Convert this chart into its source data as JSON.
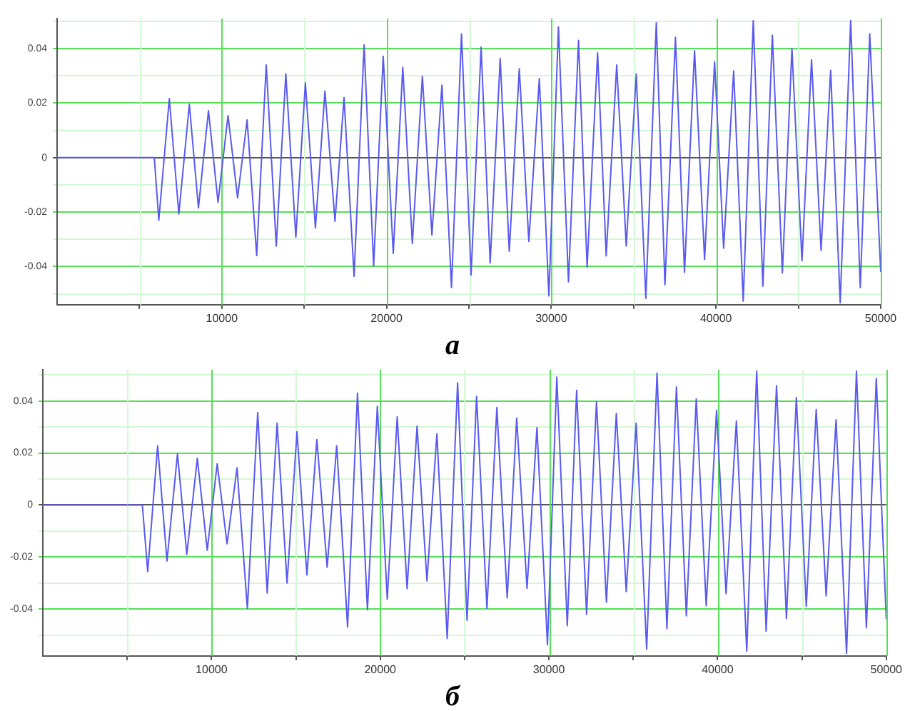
{
  "chart_data": [
    {
      "type": "line",
      "title": "а",
      "color": "#5a5af0",
      "grid": true,
      "xlim": [
        0,
        50000
      ],
      "ylim": [
        -0.054,
        0.051
      ],
      "xticks": [
        {
          "value": 5000,
          "label": null
        },
        10000,
        {
          "value": 15000,
          "label": null
        },
        20000,
        {
          "value": 25000,
          "label": null
        },
        30000,
        {
          "value": 35000,
          "label": null
        },
        40000,
        {
          "value": 45000,
          "label": null
        },
        50000
      ],
      "yticks": [
        {
          "value": -0.05,
          "label": null
        },
        -0.04,
        {
          "value": -0.03,
          "label": null
        },
        -0.02,
        {
          "value": -0.01,
          "label": null
        },
        0,
        {
          "value": 0.01,
          "label": null
        },
        0.02,
        {
          "value": 0.03,
          "label": null
        },
        0.04,
        {
          "value": 0.05,
          "label": null
        }
      ],
      "x": [
        0,
        5900,
        6174,
        6812,
        7391,
        8029,
        8580,
        9189,
        9769,
        10377,
        10957,
        11536,
        12116,
        12696,
        13305,
        13884,
        14493,
        15072,
        15681,
        16261,
        16870,
        17420,
        18029,
        18638,
        19217,
        19797,
        20406,
        20985,
        21565,
        22174,
        22754,
        23362,
        23942,
        24551,
        25131,
        25740,
        26290,
        26899,
        27450,
        28059,
        28638,
        29276,
        29855,
        30435,
        31044,
        31653,
        32175,
        32812,
        33334,
        33972,
        34551,
        35159,
        35740,
        36377,
        36899,
        37538,
        38088,
        38697,
        39306,
        39915,
        40463,
        41072,
        41653,
        42263,
        42845,
        43420,
        44029,
        44610,
        45219,
        45800,
        46377,
        46960,
        47540,
        48175,
        48758,
        49333,
        50000
      ],
      "values": [
        0,
        0,
        -0.023,
        0.0216,
        -0.0207,
        0.0195,
        -0.0185,
        0.0172,
        -0.0164,
        0.0154,
        -0.0148,
        0.0138,
        -0.036,
        0.034,
        -0.0325,
        0.0307,
        -0.0292,
        0.0274,
        -0.0259,
        0.0244,
        -0.0234,
        0.022,
        -0.0436,
        0.0413,
        -0.0398,
        0.0372,
        -0.0352,
        0.0331,
        -0.0316,
        0.0298,
        -0.0284,
        0.0266,
        -0.0477,
        0.0454,
        -0.0431,
        0.0405,
        -0.0387,
        0.0364,
        -0.0344,
        0.0326,
        -0.0308,
        0.029,
        -0.0508,
        0.0479,
        -0.0456,
        0.043,
        -0.0403,
        0.0384,
        -0.0361,
        0.034,
        -0.0325,
        0.0307,
        -0.0517,
        0.0495,
        -0.0467,
        0.0441,
        -0.0421,
        0.0392,
        -0.0374,
        0.0351,
        -0.0333,
        0.0318,
        -0.0527,
        0.0503,
        -0.0472,
        0.0449,
        -0.0423,
        0.04,
        -0.0379,
        0.0359,
        -0.0341,
        0.032,
        -0.0533,
        0.0503,
        -0.0477,
        0.0454,
        -0.042
      ]
    },
    {
      "type": "line",
      "title": "б",
      "color": "#5a5af0",
      "grid": true,
      "xlim": [
        0,
        50000
      ],
      "ylim": [
        -0.058,
        0.052
      ],
      "xticks": [
        {
          "value": 5000,
          "label": null
        },
        10000,
        {
          "value": 15000,
          "label": null
        },
        20000,
        {
          "value": 25000,
          "label": null
        },
        30000,
        {
          "value": 35000,
          "label": null
        },
        40000,
        {
          "value": 45000,
          "label": null
        },
        50000
      ],
      "yticks": [
        {
          "value": -0.05,
          "label": null
        },
        -0.04,
        {
          "value": -0.03,
          "label": null
        },
        -0.02,
        {
          "value": -0.01,
          "label": null
        },
        0,
        {
          "value": 0.01,
          "label": null
        },
        0.02,
        {
          "value": 0.03,
          "label": null
        },
        0.04,
        {
          "value": 0.05,
          "label": null
        }
      ],
      "x": [
        0,
        5900,
        6218,
        6806,
        7361,
        7983,
        8537,
        9159,
        9748,
        10336,
        10924,
        11512,
        12126,
        12739,
        13302,
        13890,
        14478,
        15067,
        15655,
        16243,
        16857,
        17420,
        18067,
        18654,
        19243,
        19831,
        20419,
        21007,
        21596,
        22184,
        22772,
        23360,
        23974,
        24588,
        25150,
        25713,
        26328,
        26915,
        27529,
        28091,
        28705,
        29293,
        29915,
        30469,
        31091,
        31645,
        32234,
        32822,
        33410,
        33998,
        34586,
        35174,
        35796,
        36410,
        36998,
        37561,
        38149,
        38737,
        39326,
        39939,
        40502,
        41115,
        41730,
        42318,
        42880,
        43494,
        44082,
        44670,
        45258,
        45847,
        46435,
        47023,
        47645,
        48233,
        48821,
        49410,
        50000
      ],
      "values": [
        0,
        0,
        -0.0256,
        0.0228,
        -0.0215,
        0.0197,
        -0.019,
        0.018,
        -0.0174,
        0.0159,
        -0.0149,
        0.0143,
        -0.0398,
        0.0356,
        -0.0338,
        0.0315,
        -0.03,
        0.0282,
        -0.0269,
        0.0252,
        -0.0239,
        0.0228,
        -0.0469,
        0.043,
        -0.0403,
        0.038,
        -0.0362,
        0.0339,
        -0.0321,
        0.0303,
        -0.0292,
        0.0274,
        -0.0513,
        0.047,
        -0.0443,
        0.0418,
        -0.0398,
        0.0375,
        -0.0357,
        0.0334,
        -0.032,
        0.0298,
        -0.0538,
        0.0492,
        -0.0464,
        0.0441,
        -0.042,
        0.0397,
        -0.0374,
        0.0352,
        -0.0333,
        0.0315,
        -0.0554,
        0.0507,
        -0.0475,
        0.0454,
        -0.0426,
        0.0408,
        -0.0387,
        0.0364,
        -0.0341,
        0.0323,
        -0.0562,
        0.0515,
        -0.0485,
        0.0459,
        -0.0436,
        0.0413,
        -0.039,
        0.0367,
        -0.0349,
        0.0328,
        -0.057,
        0.0515,
        -0.0472,
        0.0487,
        -0.0439
      ]
    }
  ]
}
